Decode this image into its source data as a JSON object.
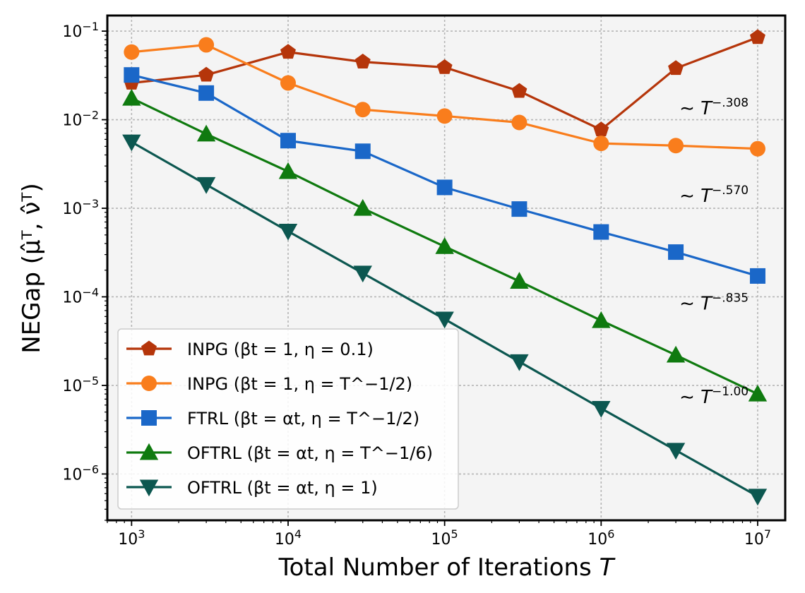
{
  "chart_data": {
    "type": "line",
    "title": "",
    "xlabel": "Total Number of Iterations T",
    "ylabel": "NEGap (μ̂ᵀ, ν̂ᵀ)",
    "xscale": "log",
    "yscale": "log",
    "xlim": [
      700,
      15000000
    ],
    "ylim": [
      3e-07,
      0.15
    ],
    "grid": true,
    "legend_position": "lower-left",
    "x_tick_labels": [
      "10^3",
      "10^4",
      "10^5",
      "10^6",
      "10^7"
    ],
    "y_tick_labels": [
      "10^-6",
      "10^-5",
      "10^-4",
      "10^-3",
      "10^-2",
      "10^-1"
    ],
    "x": [
      1000,
      3000,
      10000,
      30000,
      100000,
      300000,
      1000000,
      3000000,
      10000000
    ],
    "series": [
      {
        "name": "INPG (βt = 1, η = 0.1)",
        "color": "#b5350a",
        "marker": "pentagon",
        "values": [
          0.026,
          0.032,
          0.058,
          0.045,
          0.039,
          0.021,
          0.0077,
          0.038,
          0.085
        ]
      },
      {
        "name": "INPG (βt = 1, η = T^−1/2)",
        "color": "#f97d1c",
        "marker": "circle",
        "values": [
          0.058,
          0.07,
          0.026,
          0.013,
          0.011,
          0.0093,
          0.0054,
          0.0051,
          0.0047
        ]
      },
      {
        "name": "FTRL (βt = αt, η = T^−1/2)",
        "color": "#1a67c8",
        "marker": "square",
        "values": [
          0.032,
          0.02,
          0.0058,
          0.0044,
          0.00172,
          0.00098,
          0.00054,
          0.00032,
          0.000172
        ]
      },
      {
        "name": "OFTRL (βt = αt, η = T^−1/6)",
        "color": "#0f7a0f",
        "marker": "triangle-up",
        "values": [
          0.0175,
          0.0069,
          0.0026,
          0.001,
          0.00037,
          0.00015,
          5.4e-05,
          2.2e-05,
          8e-06
        ]
      },
      {
        "name": "OFTRL (βt = αt, η = 1)",
        "color": "#0c5750",
        "marker": "triangle-down",
        "values": [
          0.0056,
          0.00185,
          0.00055,
          0.000185,
          5.6e-05,
          1.85e-05,
          5.5e-06,
          1.85e-06,
          5.6e-07
        ]
      }
    ],
    "annotations": [
      {
        "prefix": "∼ T",
        "exponent": "−.308",
        "x": 3000000,
        "y": 0.0115
      },
      {
        "prefix": "∼ T",
        "exponent": "−.570",
        "x": 3000000,
        "y": 0.00118
      },
      {
        "prefix": "∼ T",
        "exponent": "−.835",
        "x": 3000000,
        "y": 7.2e-05
      },
      {
        "prefix": "∼ T",
        "exponent": "−1.00",
        "x": 3000000,
        "y": 6.3e-06
      }
    ]
  }
}
